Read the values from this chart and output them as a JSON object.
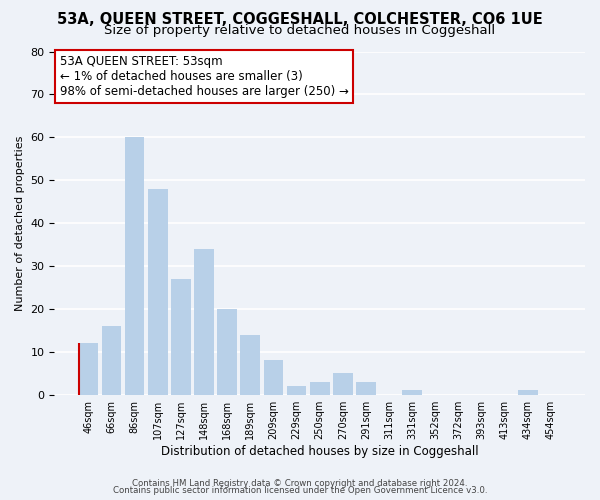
{
  "title1": "53A, QUEEN STREET, COGGESHALL, COLCHESTER, CO6 1UE",
  "title2": "Size of property relative to detached houses in Coggeshall",
  "xlabel": "Distribution of detached houses by size in Coggeshall",
  "ylabel": "Number of detached properties",
  "bar_labels": [
    "46sqm",
    "66sqm",
    "86sqm",
    "107sqm",
    "127sqm",
    "148sqm",
    "168sqm",
    "189sqm",
    "209sqm",
    "229sqm",
    "250sqm",
    "270sqm",
    "291sqm",
    "311sqm",
    "331sqm",
    "352sqm",
    "372sqm",
    "393sqm",
    "413sqm",
    "434sqm",
    "454sqm"
  ],
  "bar_values": [
    12,
    16,
    60,
    48,
    27,
    34,
    20,
    14,
    8,
    2,
    3,
    5,
    3,
    0,
    1,
    0,
    0,
    0,
    0,
    1,
    0
  ],
  "bar_color": "#b8d0e8",
  "highlight_bar_index": 0,
  "highlight_bar_color": "#b8d0e8",
  "highlight_bar_left_edge_color": "#cc0000",
  "annotation_box_text": "53A QUEEN STREET: 53sqm\n← 1% of detached houses are smaller (3)\n98% of semi-detached houses are larger (250) →",
  "annotation_box_edgecolor": "#cc0000",
  "annotation_box_facecolor": "#ffffff",
  "ylim": [
    0,
    80
  ],
  "yticks": [
    0,
    10,
    20,
    30,
    40,
    50,
    60,
    70,
    80
  ],
  "footer_line1": "Contains HM Land Registry data © Crown copyright and database right 2024.",
  "footer_line2": "Contains public sector information licensed under the Open Government Licence v3.0.",
  "bg_color": "#eef2f8",
  "grid_color": "#ffffff",
  "title_fontsize": 10.5,
  "subtitle_fontsize": 9.5,
  "tick_fontsize": 8,
  "annotation_fontsize": 8.5
}
